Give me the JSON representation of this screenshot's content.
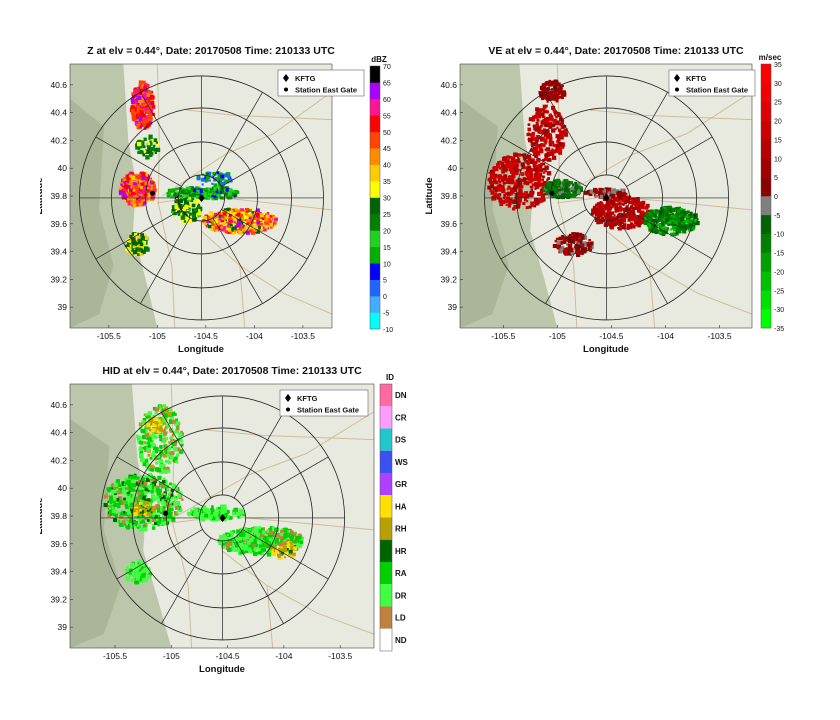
{
  "chart_data": [
    {
      "type": "heatmap",
      "panel": "Z",
      "title": "Z at elv = 0.44°, Date: 20170508 Time: 210133 UTC",
      "xlabel": "Longitude",
      "ylabel": "Latitude",
      "xlim": [
        -105.9,
        -103.2
      ],
      "ylim": [
        38.85,
        40.75
      ],
      "xticks": [
        -105.5,
        -105,
        -104.5,
        -104,
        -103.5
      ],
      "xtick_labels": [
        "-105.5",
        "-105",
        "-104.5",
        "-104",
        "-103.5"
      ],
      "yticks": [
        39,
        39.2,
        39.4,
        39.6,
        39.8,
        40,
        40.2,
        40.4,
        40.6
      ],
      "ytick_labels": [
        "39",
        "39.2",
        "39.4",
        "39.6",
        "39.8",
        "40",
        "40.2",
        "40.4",
        "40.6"
      ],
      "legend": [
        "KFTG",
        "Station East Gate"
      ],
      "colorbar": {
        "label": "dBZ",
        "min": -10,
        "max": 70,
        "ticks": [
          -10,
          -5,
          0,
          5,
          10,
          15,
          20,
          25,
          30,
          35,
          40,
          45,
          50,
          55,
          60,
          65,
          70
        ],
        "tick_labels": [
          "-10",
          "-5",
          "0",
          "5",
          "10",
          "15",
          "20",
          "25",
          "30",
          "35",
          "40",
          "45",
          "50",
          "55",
          "60",
          "65",
          "70"
        ],
        "colors": [
          "#00ffff",
          "#3fb0ff",
          "#1e66ff",
          "#0000ff",
          "#00b000",
          "#22d022",
          "#008000",
          "#006400",
          "#ffff00",
          "#ffcc00",
          "#ff8c00",
          "#ff4500",
          "#ff0000",
          "#ff1493",
          "#aa00ff",
          "#000000"
        ]
      }
    },
    {
      "type": "heatmap",
      "panel": "VE",
      "title": "VE at elv = 0.44°, Date: 20170508 Time: 210133 UTC",
      "xlabel": "Longitude",
      "ylabel": "Latitude",
      "xlim": [
        -105.9,
        -103.2
      ],
      "ylim": [
        38.85,
        40.75
      ],
      "xticks": [
        -105.5,
        -105,
        -104.5,
        -104,
        -103.5
      ],
      "xtick_labels": [
        "-105.5",
        "-105",
        "-104.5",
        "-104",
        "-103.5"
      ],
      "yticks": [
        39,
        39.2,
        39.4,
        39.6,
        39.8,
        40,
        40.2,
        40.4,
        40.6
      ],
      "ytick_labels": [
        "39",
        "39.2",
        "39.4",
        "39.6",
        "39.8",
        "40",
        "40.2",
        "40.4",
        "40.6"
      ],
      "legend": [
        "KFTG",
        "Station East Gate"
      ],
      "colorbar": {
        "label": "m/sec",
        "min": -35,
        "max": 35,
        "ticks": [
          -35,
          -30,
          -25,
          -20,
          -15,
          -10,
          -5,
          0,
          5,
          10,
          15,
          20,
          25,
          30,
          35
        ],
        "tick_labels": [
          "-35",
          "-30",
          "-25",
          "-20",
          "-15",
          "-10",
          "-5",
          "0",
          "5",
          "10",
          "15",
          "20",
          "25",
          "30",
          "35"
        ],
        "colors": [
          "#00ff00",
          "#00e000",
          "#00c000",
          "#00a000",
          "#008000",
          "#006400",
          "#808080",
          "#8b0000",
          "#a00000",
          "#b40000",
          "#c80000",
          "#dc0000",
          "#f00000",
          "#ff0000"
        ]
      }
    },
    {
      "type": "heatmap",
      "panel": "HID",
      "title": "HID at elv = 0.44°, Date: 20170508 Time: 210133 UTC",
      "xlabel": "Longitude",
      "ylabel": "Latitude",
      "xlim": [
        -105.9,
        -103.2
      ],
      "ylim": [
        38.85,
        40.75
      ],
      "xticks": [
        -105.5,
        -105,
        -104.5,
        -104,
        -103.5
      ],
      "xtick_labels": [
        "-105.5",
        "-105",
        "-104.5",
        "-104",
        "-103.5"
      ],
      "yticks": [
        39,
        39.2,
        39.4,
        39.6,
        39.8,
        40,
        40.2,
        40.4,
        40.6
      ],
      "ytick_labels": [
        "39",
        "39.2",
        "39.4",
        "39.6",
        "39.8",
        "40",
        "40.2",
        "40.4",
        "40.6"
      ],
      "legend": [
        "KFTG",
        "Station East Gate"
      ],
      "colorbar": {
        "label": "ID",
        "categories": [
          "DN",
          "CR",
          "DS",
          "WS",
          "GR",
          "HA",
          "RH",
          "HR",
          "RA",
          "DR",
          "LD",
          "ND"
        ],
        "colors": [
          "#ff6aa0",
          "#ff9cff",
          "#20c8c8",
          "#3c50f0",
          "#b040ff",
          "#ffe000",
          "#b8a000",
          "#006400",
          "#00d000",
          "#40ff40",
          "#c08040",
          "#ffffff"
        ]
      }
    }
  ]
}
